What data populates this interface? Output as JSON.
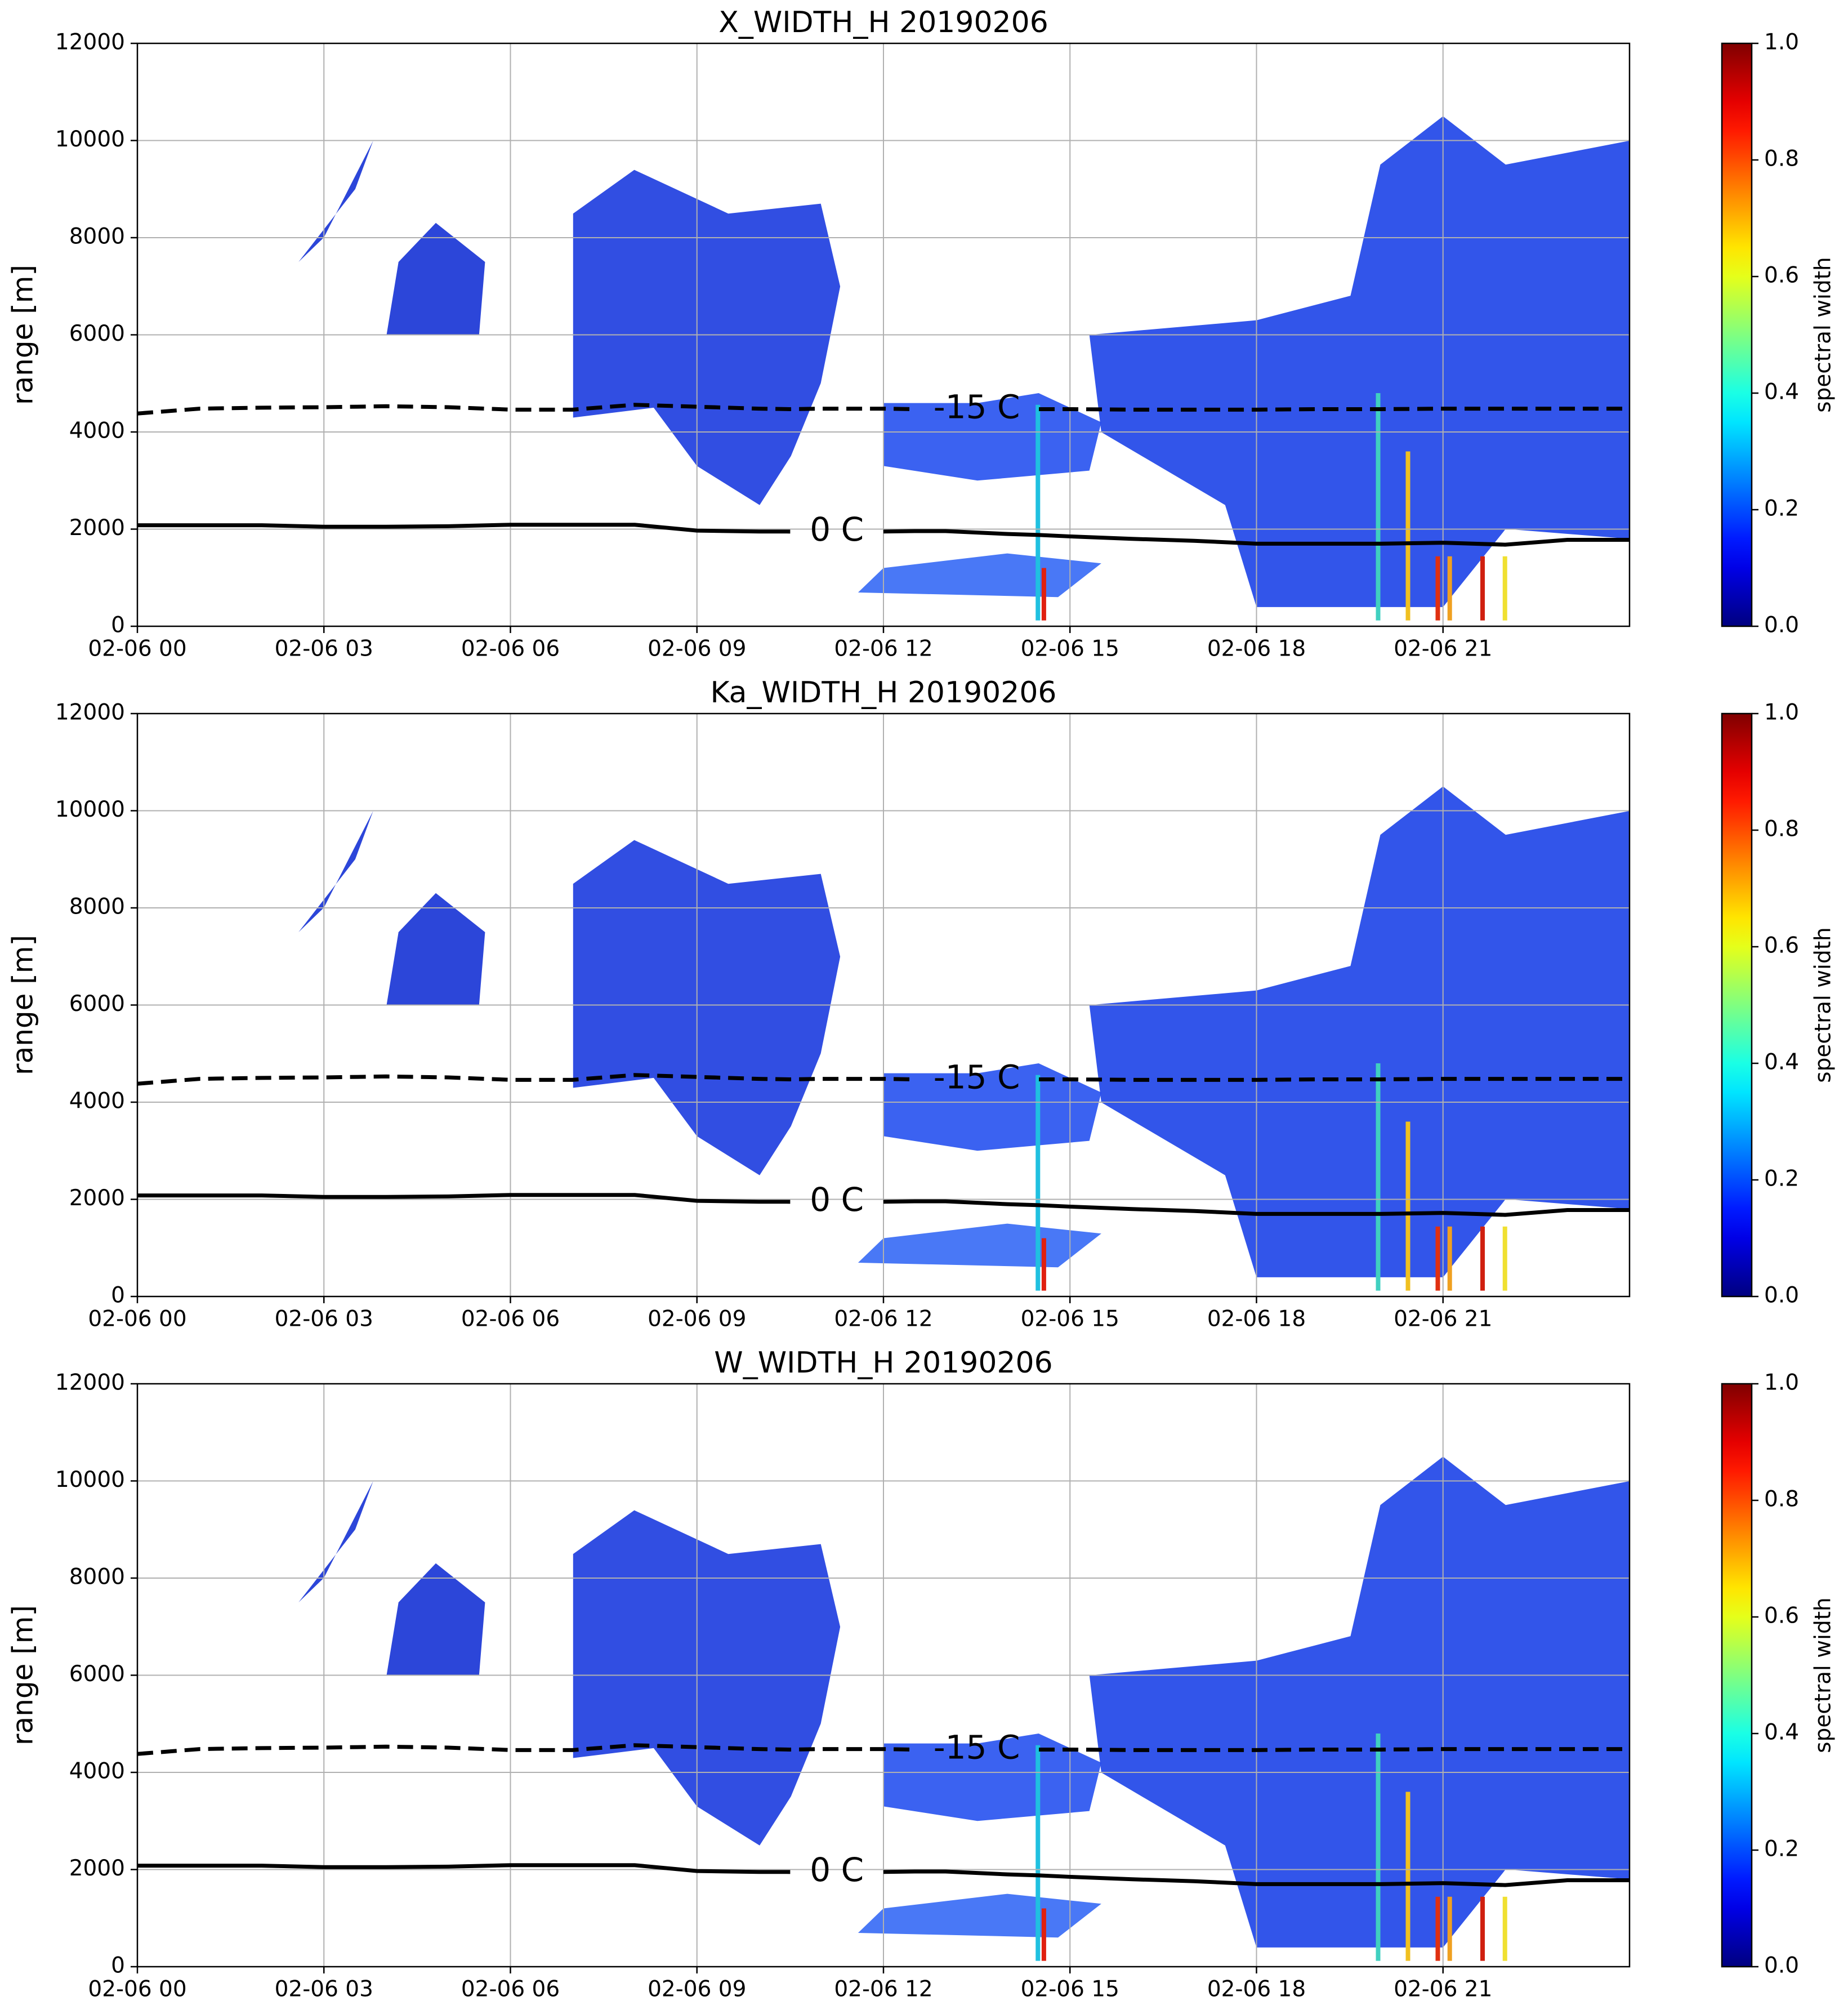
{
  "chart_data": [
    {
      "type": "line",
      "title": "X_WIDTH_H 20190206",
      "ylabel": "range [m]",
      "x": [
        0,
        1,
        2,
        3,
        4,
        5,
        6,
        7,
        8,
        9,
        10,
        10.5,
        11,
        12,
        12.5,
        13,
        14,
        14.5,
        15,
        16,
        17,
        18,
        19,
        20,
        21,
        22,
        23,
        24
      ],
      "series": [
        {
          "name": "0 C",
          "color": "#000000",
          "linestyle": "solid",
          "values": [
            2080,
            2080,
            2080,
            2050,
            2050,
            2060,
            2090,
            2090,
            2090,
            1970,
            1950,
            1950,
            null,
            1950,
            1960,
            1960,
            1900,
            1880,
            1850,
            1800,
            1760,
            1700,
            1700,
            1700,
            1720,
            1680,
            1780,
            1780
          ]
        },
        {
          "name": "-15 C",
          "color": "#000000",
          "linestyle": "dashed",
          "values": [
            4380,
            4480,
            4500,
            4510,
            4530,
            4510,
            4460,
            4460,
            4560,
            4520,
            4480,
            4470,
            4480,
            4480,
            4470,
            null,
            null,
            4470,
            4470,
            4460,
            4460,
            4460,
            4470,
            4470,
            4480,
            4480,
            4480,
            4480
          ]
        }
      ],
      "xlim": [
        0,
        24
      ],
      "xticks": [
        {
          "value": 0,
          "label": "02-06 00"
        },
        {
          "value": 3,
          "label": "02-06 03"
        },
        {
          "value": 6,
          "label": "02-06 06"
        },
        {
          "value": 9,
          "label": "02-06 09"
        },
        {
          "value": 12,
          "label": "02-06 12"
        },
        {
          "value": 15,
          "label": "02-06 15"
        },
        {
          "value": 18,
          "label": "02-06 18"
        },
        {
          "value": 21,
          "label": "02-06 21"
        }
      ],
      "ylim": [
        0,
        12000
      ],
      "yticks": [
        0,
        2000,
        4000,
        6000,
        8000,
        10000,
        12000
      ],
      "grid": true,
      "colorbar": {
        "label": "spectral width",
        "colormap": "jet",
        "lim": [
          0,
          1
        ],
        "ticks": [
          {
            "value": 0,
            "label": "0.0"
          },
          {
            "value": 0.2,
            "label": "0.2"
          },
          {
            "value": 0.4,
            "label": "0.4"
          },
          {
            "value": 0.6,
            "label": "0.6"
          },
          {
            "value": 0.8,
            "label": "0.8"
          },
          {
            "value": 1,
            "label": "1.0"
          }
        ]
      }
    },
    {
      "type": "line",
      "title": "Ka_WIDTH_H 20190206",
      "ylabel": "range [m]",
      "x": [
        0,
        1,
        2,
        3,
        4,
        5,
        6,
        7,
        8,
        9,
        10,
        10.5,
        11,
        12,
        12.5,
        13,
        14,
        14.5,
        15,
        16,
        17,
        18,
        19,
        20,
        21,
        22,
        23,
        24
      ],
      "series": [
        {
          "name": "0 C",
          "color": "#000000",
          "linestyle": "solid",
          "values": [
            2080,
            2080,
            2080,
            2050,
            2050,
            2060,
            2090,
            2090,
            2090,
            1970,
            1950,
            1950,
            null,
            1950,
            1960,
            1960,
            1900,
            1880,
            1850,
            1800,
            1760,
            1700,
            1700,
            1700,
            1720,
            1680,
            1780,
            1780
          ]
        },
        {
          "name": "-15 C",
          "color": "#000000",
          "linestyle": "dashed",
          "values": [
            4380,
            4480,
            4500,
            4510,
            4530,
            4510,
            4460,
            4460,
            4560,
            4520,
            4480,
            4470,
            4480,
            4480,
            4470,
            null,
            null,
            4470,
            4470,
            4460,
            4460,
            4460,
            4470,
            4470,
            4480,
            4480,
            4480,
            4480
          ]
        }
      ],
      "xlim": [
        0,
        24
      ],
      "xticks": [
        {
          "value": 0,
          "label": "02-06 00"
        },
        {
          "value": 3,
          "label": "02-06 03"
        },
        {
          "value": 6,
          "label": "02-06 06"
        },
        {
          "value": 9,
          "label": "02-06 09"
        },
        {
          "value": 12,
          "label": "02-06 12"
        },
        {
          "value": 15,
          "label": "02-06 15"
        },
        {
          "value": 18,
          "label": "02-06 18"
        },
        {
          "value": 21,
          "label": "02-06 21"
        }
      ],
      "ylim": [
        0,
        12000
      ],
      "yticks": [
        0,
        2000,
        4000,
        6000,
        8000,
        10000,
        12000
      ],
      "grid": true,
      "colorbar": {
        "label": "spectral width",
        "colormap": "jet",
        "lim": [
          0,
          1
        ],
        "ticks": [
          {
            "value": 0,
            "label": "0.0"
          },
          {
            "value": 0.2,
            "label": "0.2"
          },
          {
            "value": 0.4,
            "label": "0.4"
          },
          {
            "value": 0.6,
            "label": "0.6"
          },
          {
            "value": 0.8,
            "label": "0.8"
          },
          {
            "value": 1,
            "label": "1.0"
          }
        ]
      }
    },
    {
      "type": "line",
      "title": "W_WIDTH_H 20190206",
      "ylabel": "range [m]",
      "x": [
        0,
        1,
        2,
        3,
        4,
        5,
        6,
        7,
        8,
        9,
        10,
        10.5,
        11,
        12,
        12.5,
        13,
        14,
        14.5,
        15,
        16,
        17,
        18,
        19,
        20,
        21,
        22,
        23,
        24
      ],
      "series": [
        {
          "name": "0 C",
          "color": "#000000",
          "linestyle": "solid",
          "values": [
            2080,
            2080,
            2080,
            2050,
            2050,
            2060,
            2090,
            2090,
            2090,
            1970,
            1950,
            1950,
            null,
            1950,
            1960,
            1960,
            1900,
            1880,
            1850,
            1800,
            1760,
            1700,
            1700,
            1700,
            1720,
            1680,
            1780,
            1780
          ]
        },
        {
          "name": "-15 C",
          "color": "#000000",
          "linestyle": "dashed",
          "values": [
            4380,
            4480,
            4500,
            4510,
            4530,
            4510,
            4460,
            4460,
            4560,
            4520,
            4480,
            4470,
            4480,
            4480,
            4470,
            null,
            null,
            4470,
            4470,
            4460,
            4460,
            4460,
            4470,
            4470,
            4480,
            4480,
            4480,
            4480
          ]
        }
      ],
      "xlim": [
        0,
        24
      ],
      "xticks": [
        {
          "value": 0,
          "label": "02-06 00"
        },
        {
          "value": 3,
          "label": "02-06 03"
        },
        {
          "value": 6,
          "label": "02-06 06"
        },
        {
          "value": 9,
          "label": "02-06 09"
        },
        {
          "value": 12,
          "label": "02-06 12"
        },
        {
          "value": 15,
          "label": "02-06 15"
        },
        {
          "value": 18,
          "label": "02-06 18"
        },
        {
          "value": 21,
          "label": "02-06 21"
        }
      ],
      "ylim": [
        0,
        12000
      ],
      "yticks": [
        0,
        2000,
        4000,
        6000,
        8000,
        10000,
        12000
      ],
      "grid": true,
      "colorbar": {
        "label": "spectral width",
        "colormap": "jet",
        "lim": [
          0,
          1
        ],
        "ticks": [
          {
            "value": 0,
            "label": "0.0"
          },
          {
            "value": 0.2,
            "label": "0.2"
          },
          {
            "value": 0.4,
            "label": "0.4"
          },
          {
            "value": 0.6,
            "label": "0.6"
          },
          {
            "value": 0.8,
            "label": "0.8"
          },
          {
            "value": 1,
            "label": "1.0"
          }
        ]
      }
    }
  ]
}
